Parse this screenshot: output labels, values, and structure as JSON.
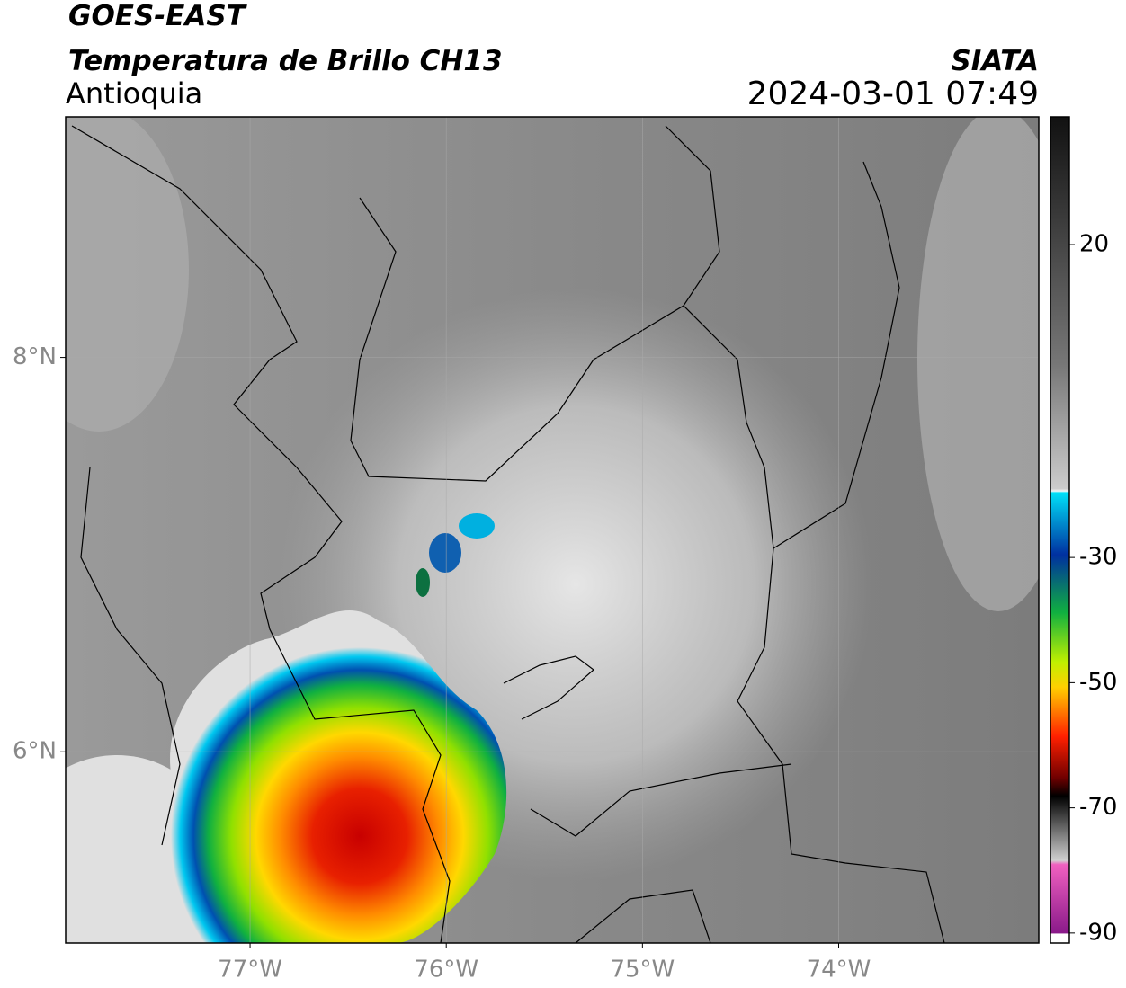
{
  "map": {
    "title": "GOES-EAST",
    "subtitle": "Temperatura de Brillo CH13",
    "region": "Antioquia",
    "source": "SIATA",
    "timestamp": "2024-03-01 07:49",
    "xlim": [
      -77.94,
      -72.98
    ],
    "ylim": [
      5.03,
      9.22
    ],
    "xticks": [
      {
        "value": -77,
        "label": "77°W"
      },
      {
        "value": -76,
        "label": "76°W"
      },
      {
        "value": -75,
        "label": "75°W"
      },
      {
        "value": -74,
        "label": "74°W"
      }
    ],
    "yticks": [
      {
        "value": 8,
        "label": "8°N"
      },
      {
        "value": 6,
        "label": "6°N"
      }
    ],
    "grid": true,
    "colorbar": {
      "lim": [
        -91.6,
        40.4
      ],
      "ticks": [
        20,
        -30,
        -50,
        -70,
        -90
      ]
    }
  }
}
